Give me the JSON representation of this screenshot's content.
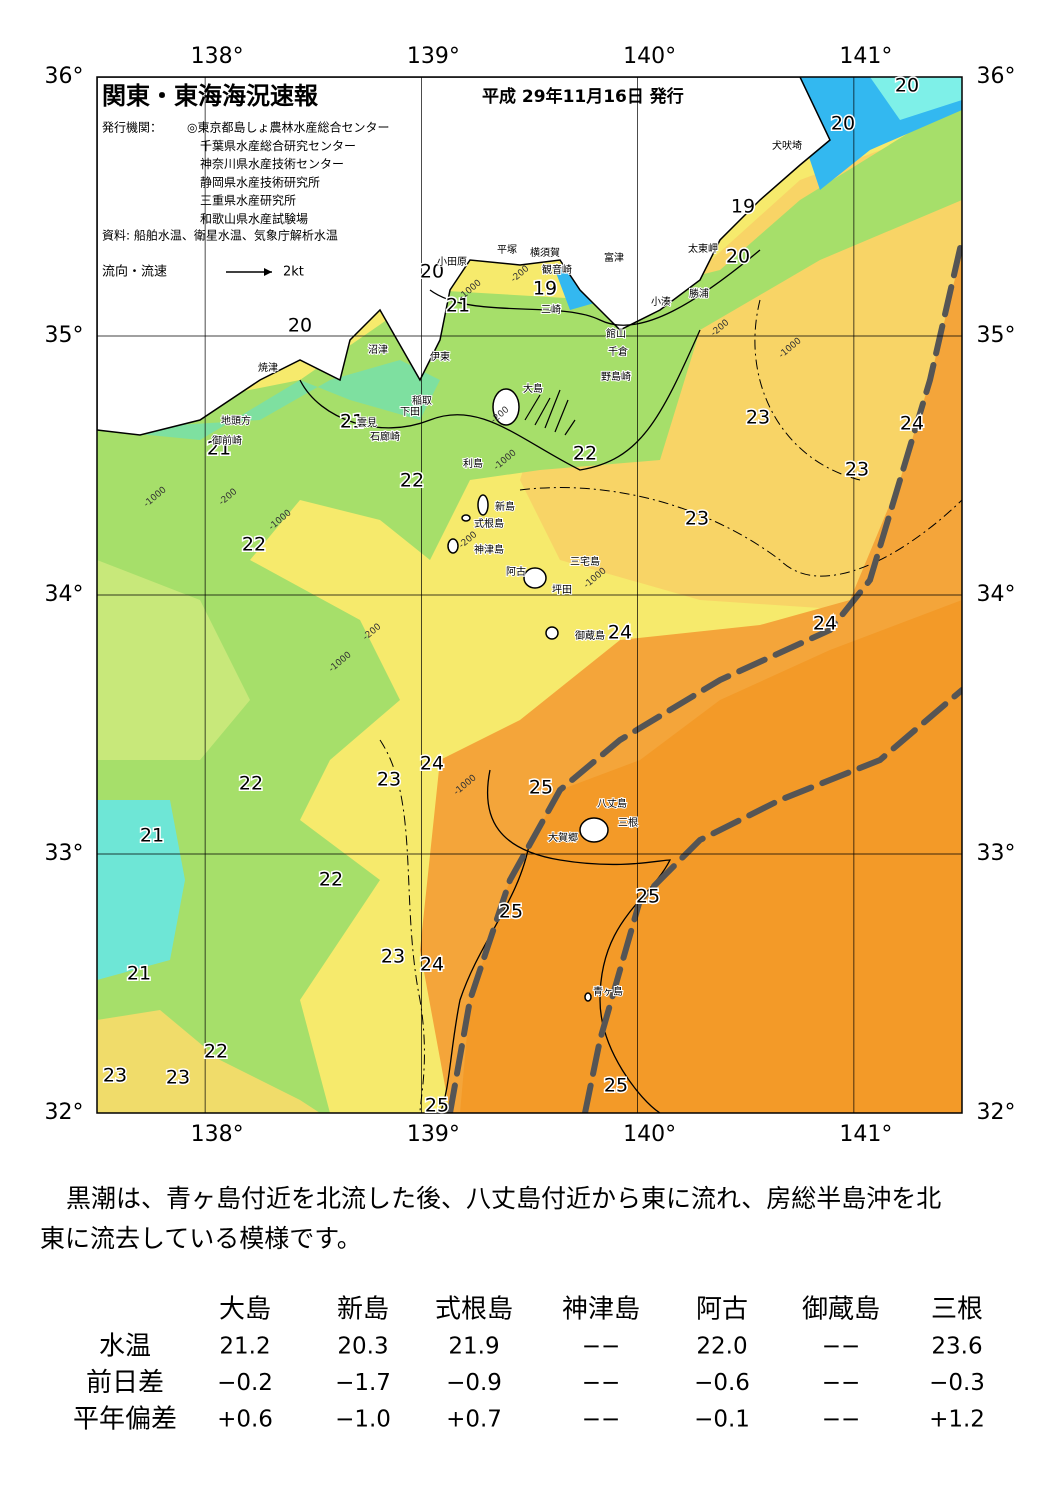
{
  "header": {
    "title": "関東・東海海況速報",
    "date": "平成 29年11月16日 発行",
    "publisher_label": "発行機関：",
    "publishers": [
      "◎東京都島しょ農林水産総合センター",
      "千葉県水産総合研究センター",
      "神奈川県水産技術センター",
      "静岡県水産技術研究所",
      "三重県水産研究所",
      "和歌山県水産試験場"
    ],
    "source": "資料: 船舶水温、衛星水温、気象庁解析水温",
    "legend": {
      "label": "流向・流速",
      "speed": "2kt"
    }
  },
  "map": {
    "lon_range": [
      137.5,
      141.5
    ],
    "lat_range": [
      32,
      36
    ],
    "lon_ticks": [
      {
        "value": 138,
        "label": "138°"
      },
      {
        "value": 139,
        "label": "139°"
      },
      {
        "value": 140,
        "label": "140°"
      },
      {
        "value": 141,
        "label": "141°"
      }
    ],
    "lat_ticks": [
      {
        "value": 36,
        "label": "36°"
      },
      {
        "value": 35,
        "label": "35°"
      },
      {
        "value": 34,
        "label": "34°"
      },
      {
        "value": 33,
        "label": "33°"
      },
      {
        "value": 32,
        "label": "32°"
      }
    ],
    "contour_labels": [
      20,
      20,
      19,
      20,
      20,
      19,
      21,
      20,
      21,
      21,
      22,
      22,
      23,
      24,
      23,
      23,
      22,
      24,
      24,
      23,
      24,
      22,
      25,
      21,
      22,
      25,
      25,
      23,
      24,
      21,
      22,
      23,
      23,
      25,
      25
    ],
    "depth_labels": [
      "-200",
      "-1000",
      "-200",
      "-1000",
      "-200",
      "-1000",
      "-200",
      "-1000",
      "-1000",
      "-200",
      "-1000",
      "-200",
      "-1000",
      "-1000"
    ],
    "places": [
      "犬吠埼",
      "太東岬",
      "勝浦",
      "小湊",
      "富津",
      "館山",
      "千倉",
      "野島崎",
      "平塚",
      "横須賀",
      "観音崎",
      "三崎",
      "小田原",
      "沼津",
      "伊東",
      "焼津",
      "稲取",
      "下田",
      "雲見",
      "石廊崎",
      "地頭方",
      "御前崎",
      "大島",
      "利島",
      "新島",
      "式根島",
      "神津島",
      "三宅島",
      "阿古",
      "坪田",
      "御蔵島",
      "八丈島",
      "三根",
      "大賀郷",
      "青ヶ島"
    ]
  },
  "summary": {
    "lines": [
      "黒潮は、青ヶ島付近を北流した後、八丈島付近から東に流れ、房総半島沖を北",
      "東に流去している模様です。"
    ]
  },
  "table": {
    "columns": [
      "大島",
      "新島",
      "式根島",
      "神津島",
      "阿古",
      "御蔵島",
      "三根"
    ],
    "rows": [
      {
        "label": "水温",
        "values": [
          "21.2",
          "20.3",
          "21.9",
          "−−",
          "22.0",
          "−−",
          "23.6"
        ]
      },
      {
        "label": "前日差",
        "values": [
          "−0.2",
          "−1.7",
          "−0.9",
          "−−",
          "−0.6",
          "−−",
          "−0.3"
        ]
      },
      {
        "label": "平年偏差",
        "values": [
          "+0.6",
          "−1.0",
          "+0.7",
          "−−",
          "−0.1",
          "−−",
          "+1.2"
        ]
      }
    ]
  }
}
